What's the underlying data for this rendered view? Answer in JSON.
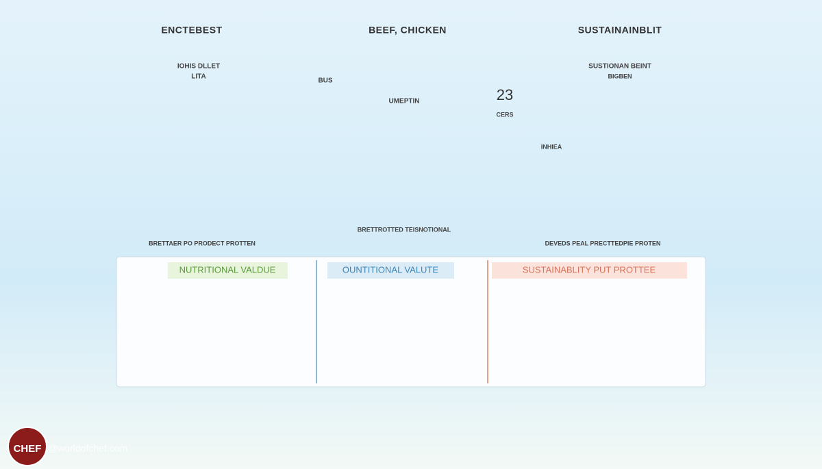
{
  "header": {
    "titles": [
      "ENCTEBEST",
      "BEEF, CHICKEN",
      "SUSTAINAINBLIT"
    ]
  },
  "labels": {
    "left_sub": "IOHIS DLLET",
    "left_sub2": "LITA",
    "center_tag": "BUS",
    "center_sub": "UMEPTIN",
    "center_stat": "23",
    "center_stat_unit": "CERS",
    "right_sub": "SUSTIONAN BEINT",
    "right_sub2": "BIGBEN",
    "right_tag": "INHIEA"
  },
  "captions": [
    "BRETTAER PO PRODECT PROTTEN",
    "BRETTROTTED TEISNOTIONAL",
    "DEVEDS PEAL PRECTTEDPIE PROTEN"
  ],
  "panels": [
    {
      "title": "NUTRITIONAL VALDUE"
    },
    {
      "title": "OUNTITIONAL VALUTE"
    },
    {
      "title": "SUSTAINABLITY PUT PROTTEE"
    }
  ],
  "footer": {
    "logo": "CHEF",
    "watermark": "@worldofchef.com"
  }
}
